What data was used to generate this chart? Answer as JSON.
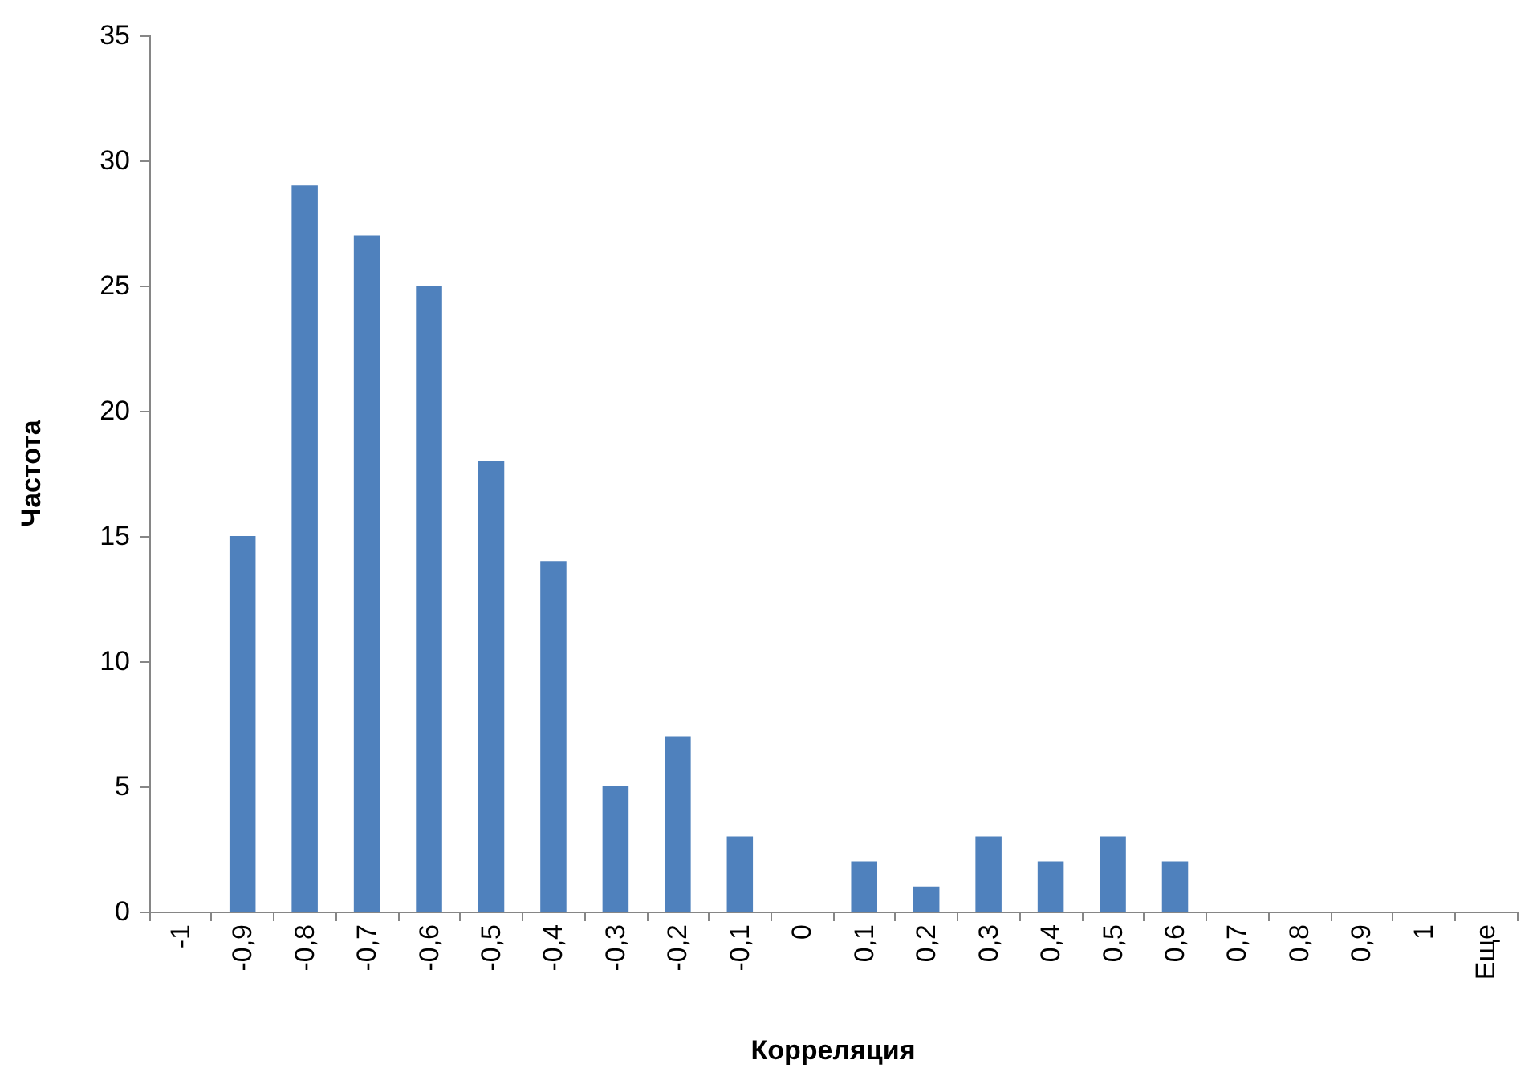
{
  "chart_data": {
    "type": "bar",
    "xlabel": "Корреляция",
    "ylabel": "Частота",
    "categories": [
      "-1",
      "-0,9",
      "-0,8",
      "-0,7",
      "-0,6",
      "-0,5",
      "-0,4",
      "-0,3",
      "-0,2",
      "-0,1",
      "0",
      "0,1",
      "0,2",
      "0,3",
      "0,4",
      "0,5",
      "0,6",
      "0,7",
      "0,8",
      "0,9",
      "1",
      "Еще"
    ],
    "values": [
      0,
      15,
      29,
      27,
      25,
      18,
      14,
      5,
      7,
      3,
      0,
      2,
      1,
      3,
      2,
      3,
      2,
      0,
      0,
      0,
      0,
      0
    ],
    "color": "#4f81bd",
    "ylim": [
      0,
      35
    ],
    "yticks": [
      0,
      5,
      10,
      15,
      20,
      25,
      30,
      35
    ],
    "grid": false
  }
}
